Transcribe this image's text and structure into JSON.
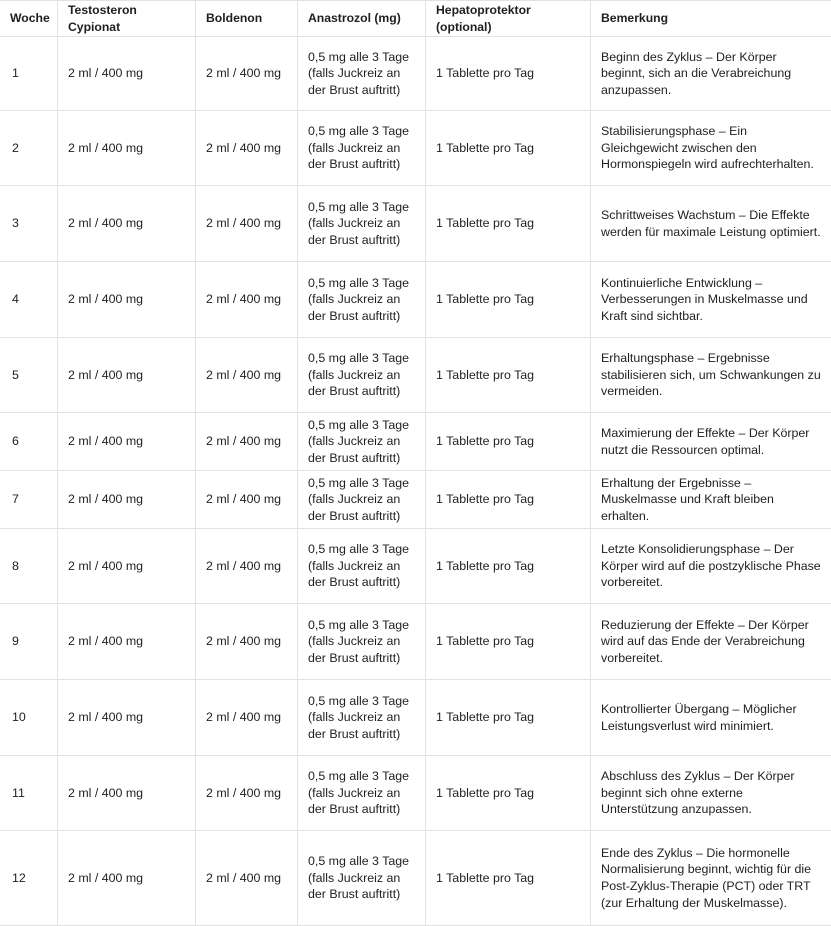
{
  "table": {
    "headers": [
      "Woche",
      "Testosteron Cypionat",
      "Boldenon",
      "Anastrozol (mg)",
      "Hepatoprotektor (optional)",
      "Bemerkung"
    ],
    "rows": [
      {
        "woche": "1",
        "testo": "2 ml / 400 mg",
        "bold": "2 ml / 400 mg",
        "ana": "0,5 mg alle 3 Tage (falls Juckreiz an der Brust auftritt)",
        "hep": "1 Tablette pro Tag",
        "note": "Beginn des Zyklus – Der Körper beginnt, sich an die Verabreichung anzupassen."
      },
      {
        "woche": "2",
        "testo": "2 ml / 400 mg",
        "bold": "2 ml / 400 mg",
        "ana": "0,5 mg alle 3 Tage (falls Juckreiz an der Brust auftritt)",
        "hep": "1 Tablette pro Tag",
        "note": "Stabilisierungsphase – Ein Gleichgewicht zwischen den Hormonspiegeln wird aufrechterhalten."
      },
      {
        "woche": "3",
        "testo": "2 ml / 400 mg",
        "bold": "2 ml / 400 mg",
        "ana": "0,5 mg alle 3 Tage (falls Juckreiz an der Brust auftritt)",
        "hep": "1 Tablette pro Tag",
        "note": "Schrittweises Wachstum – Die Effekte werden für maximale Leistung optimiert."
      },
      {
        "woche": "4",
        "testo": "2 ml / 400 mg",
        "bold": "2 ml / 400 mg",
        "ana": "0,5 mg alle 3 Tage (falls Juckreiz an der Brust auftritt)",
        "hep": "1 Tablette pro Tag",
        "note": "Kontinuierliche Entwicklung – Verbesserungen in Muskelmasse und Kraft sind sichtbar."
      },
      {
        "woche": "5",
        "testo": "2 ml / 400 mg",
        "bold": "2 ml / 400 mg",
        "ana": "0,5 mg alle 3 Tage (falls Juckreiz an der Brust auftritt)",
        "hep": "1 Tablette pro Tag",
        "note": "Erhaltungsphase – Ergebnisse stabilisieren sich, um Schwankungen zu vermeiden."
      },
      {
        "woche": "6",
        "testo": "2 ml / 400 mg",
        "bold": "2 ml / 400 mg",
        "ana": "0,5 mg alle 3 Tage (falls Juckreiz an der Brust auftritt)",
        "hep": "1 Tablette pro Tag",
        "note": "Maximierung der Effekte – Der Körper nutzt die Ressourcen optimal."
      },
      {
        "woche": "7",
        "testo": "2 ml / 400 mg",
        "bold": "2 ml / 400 mg",
        "ana": "0,5 mg alle 3 Tage (falls Juckreiz an der Brust auftritt)",
        "hep": "1 Tablette pro Tag",
        "note": "Erhaltung der Ergebnisse – Muskelmasse und Kraft bleiben erhalten."
      },
      {
        "woche": "8",
        "testo": "2 ml / 400 mg",
        "bold": "2 ml / 400 mg",
        "ana": "0,5 mg alle 3 Tage (falls Juckreiz an der Brust auftritt)",
        "hep": "1 Tablette pro Tag",
        "note": "Letzte Konsolidierungsphase – Der Körper wird auf die postzyklische Phase vorbereitet."
      },
      {
        "woche": "9",
        "testo": "2 ml / 400 mg",
        "bold": "2 ml / 400 mg",
        "ana": "0,5 mg alle 3 Tage (falls Juckreiz an der Brust auftritt)",
        "hep": "1 Tablette pro Tag",
        "note": "Reduzierung der Effekte – Der Körper wird auf das Ende der Verabreichung vorbereitet."
      },
      {
        "woche": "10",
        "testo": "2 ml / 400 mg",
        "bold": "2 ml / 400 mg",
        "ana": "0,5 mg alle 3 Tage (falls Juckreiz an der Brust auftritt)",
        "hep": "1 Tablette pro Tag",
        "note": "Kontrollierter Übergang – Möglicher Leistungsverlust wird minimiert."
      },
      {
        "woche": "11",
        "testo": "2 ml / 400 mg",
        "bold": "2 ml / 400 mg",
        "ana": "0,5 mg alle 3 Tage (falls Juckreiz an der Brust auftritt)",
        "hep": "1 Tablette pro Tag",
        "note": "Abschluss des Zyklus – Der Körper beginnt sich ohne externe Unterstützung anzupassen."
      },
      {
        "woche": "12",
        "testo": "2 ml / 400 mg",
        "bold": "2 ml / 400 mg",
        "ana": "0,5 mg alle 3 Tage (falls Juckreiz an der Brust auftritt)",
        "hep": "1 Tablette pro Tag",
        "note": "Ende des Zyklus – Die hormonelle Normalisierung beginnt, wichtig für die Post-Zyklus-Therapie (PCT) oder TRT (zur Erhaltung der Muskelmasse)."
      }
    ]
  }
}
